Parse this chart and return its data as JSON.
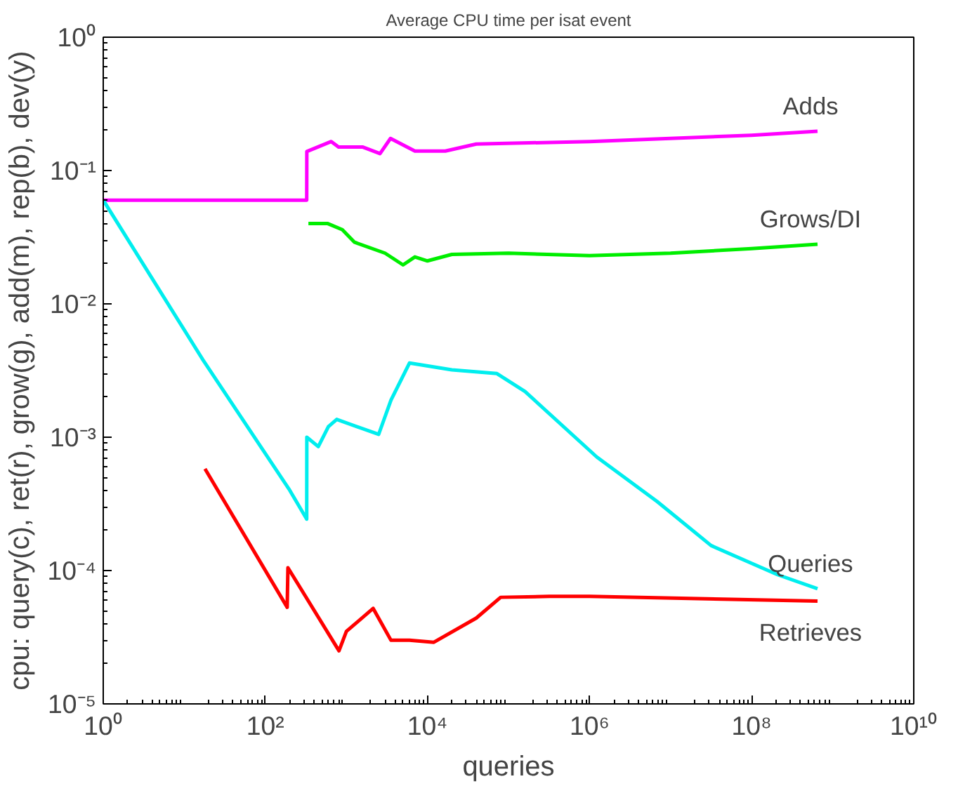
{
  "chart_data": {
    "type": "line",
    "title": "Average CPU time per isat event",
    "xlabel": "queries",
    "ylabel": "cpu: query(c), ret(r), grow(g), add(m), rep(b), dev(y)",
    "log": "xy",
    "grid": false,
    "marker": "none",
    "line_style": "solid",
    "xlim": [
      1,
      10000000000
    ],
    "ylim": [
      1e-05,
      1
    ],
    "xticks": [
      {
        "value": 1,
        "label": "10⁰"
      },
      {
        "value": 100,
        "label": "10²"
      },
      {
        "value": 10000,
        "label": "10⁴"
      },
      {
        "value": 1000000,
        "label": "10⁶"
      },
      {
        "value": 100000000,
        "label": "10⁸"
      },
      {
        "value": 10000000000,
        "label": "10¹⁰"
      }
    ],
    "yticks": [
      {
        "value": 1e-05,
        "label": "10⁻⁵"
      },
      {
        "value": 0.0001,
        "label": "10⁻⁴"
      },
      {
        "value": 0.001,
        "label": "10⁻³"
      },
      {
        "value": 0.01,
        "label": "10⁻²"
      },
      {
        "value": 0.1,
        "label": "10⁻¹"
      },
      {
        "value": 1,
        "label": "10⁰"
      }
    ],
    "series": [
      {
        "name": "Adds",
        "color": "#ff00ff",
        "x": [
          1,
          324,
          325,
          650,
          800,
          1600,
          2600,
          3500,
          7000,
          16600,
          40000,
          1000000,
          100000000,
          650000000
        ],
        "values": [
          0.06,
          0.06,
          0.139,
          0.165,
          0.15,
          0.15,
          0.134,
          0.174,
          0.14,
          0.14,
          0.158,
          0.165,
          0.184,
          0.197
        ]
      },
      {
        "name": "Grows/DI",
        "color": "#00ee00",
        "x": [
          340,
          590,
          890,
          1260,
          3000,
          5000,
          7000,
          10000,
          20000,
          100000,
          1000000,
          10000000,
          100000000,
          650000000
        ],
        "values": [
          0.04,
          0.04,
          0.036,
          0.029,
          0.024,
          0.0196,
          0.0225,
          0.021,
          0.0235,
          0.024,
          0.023,
          0.024,
          0.026,
          0.028
        ]
      },
      {
        "name": "Queries",
        "color": "#00eeee",
        "x": [
          1,
          17,
          195,
          324,
          325,
          450,
          600,
          760,
          2500,
          3550,
          6000,
          20000,
          72000,
          160000,
          1230000,
          6800000,
          31600000,
          210000000,
          650000000
        ],
        "values": [
          0.06,
          0.0038,
          0.00041,
          0.000243,
          0.001,
          0.00085,
          0.0012,
          0.00136,
          0.00105,
          0.0019,
          0.0036,
          0.0032,
          0.003,
          0.0022,
          0.00071,
          0.00033,
          0.000154,
          9.3e-05,
          7.3e-05
        ]
      },
      {
        "name": "Retrieves",
        "color": "#ff0000",
        "x": [
          18,
          186,
          190,
          810,
          1000,
          2140,
          3550,
          6000,
          12000,
          40000,
          80000,
          320000,
          1000000,
          650000000
        ],
        "values": [
          0.00058,
          5.3e-05,
          0.000105,
          2.5e-05,
          3.5e-05,
          5.2e-05,
          3e-05,
          3e-05,
          2.9e-05,
          4.4e-05,
          6.3e-05,
          6.4e-05,
          6.4e-05,
          5.9e-05
        ]
      }
    ]
  }
}
